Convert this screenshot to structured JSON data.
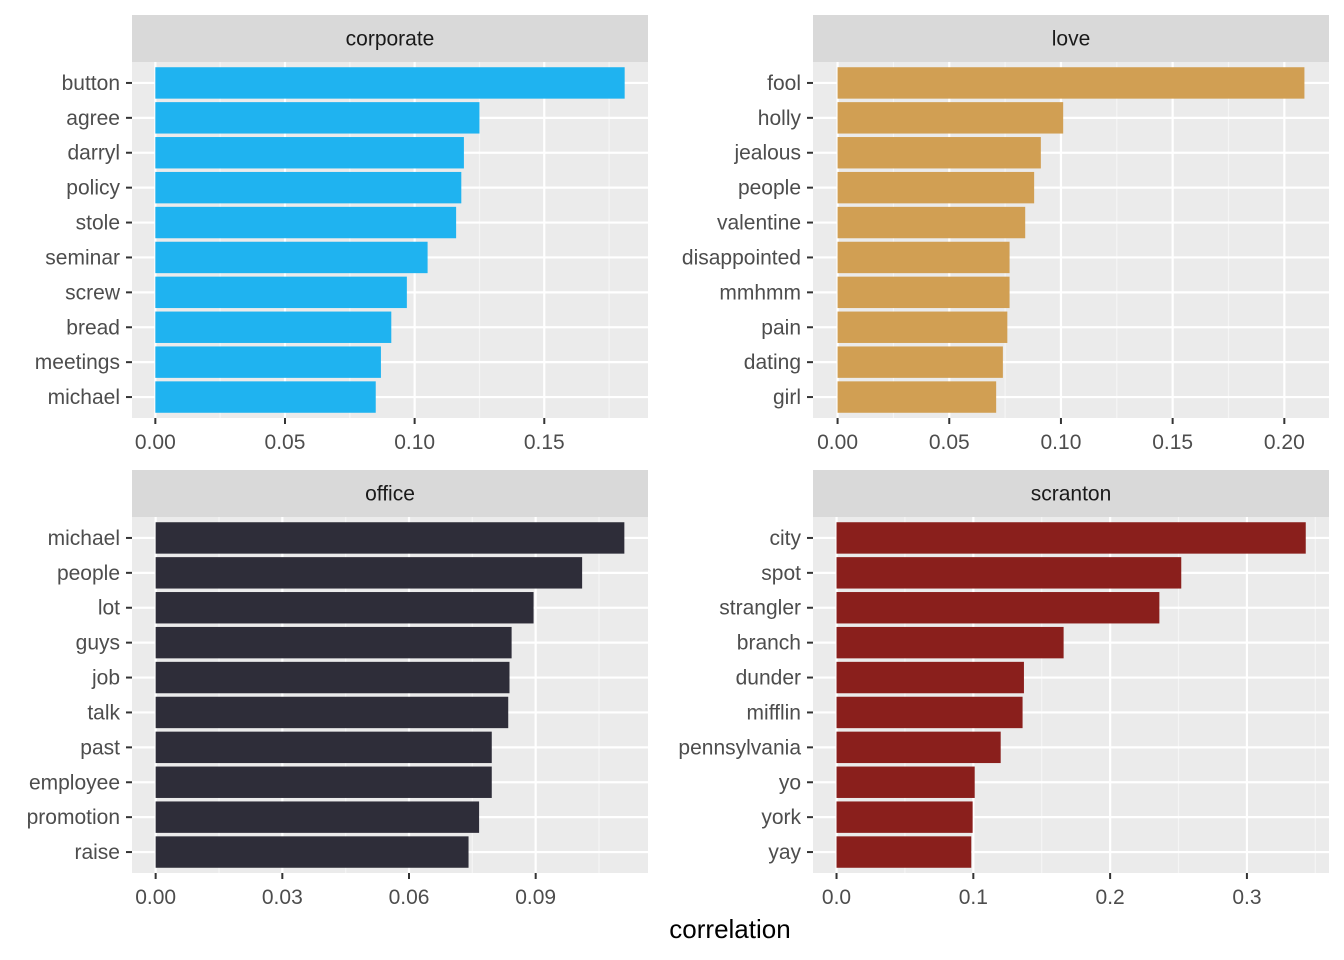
{
  "xlabel": "correlation",
  "chart_data": [
    {
      "type": "bar",
      "orientation": "horizontal",
      "facet_title": "corporate",
      "color": "#1FB3F0",
      "categories": [
        "button",
        "agree",
        "darryl",
        "policy",
        "stole",
        "seminar",
        "screw",
        "bread",
        "meetings",
        "michael"
      ],
      "values": [
        0.181,
        0.125,
        0.119,
        0.118,
        0.116,
        0.105,
        0.097,
        0.091,
        0.087,
        0.085
      ],
      "xlim": [
        -0.009,
        0.19
      ],
      "ticks": [
        0,
        0.05,
        0.1,
        0.15
      ],
      "tick_labels": [
        "0.00",
        "0.05",
        "0.10",
        "0.15"
      ]
    },
    {
      "type": "bar",
      "orientation": "horizontal",
      "facet_title": "love",
      "color": "#D19F53",
      "categories": [
        "fool",
        "holly",
        "jealous",
        "people",
        "valentine",
        "disappointed",
        "mmhmm",
        "pain",
        "dating",
        "girl"
      ],
      "values": [
        0.209,
        0.101,
        0.091,
        0.088,
        0.084,
        0.077,
        0.077,
        0.076,
        0.074,
        0.071
      ],
      "xlim": [
        -0.011,
        0.22
      ],
      "ticks": [
        0,
        0.05,
        0.1,
        0.15,
        0.2
      ],
      "tick_labels": [
        "0.00",
        "0.05",
        "0.10",
        "0.15",
        "0.20"
      ]
    },
    {
      "type": "bar",
      "orientation": "horizontal",
      "facet_title": "office",
      "color": "#2E2D39",
      "categories": [
        "michael",
        "people",
        "lot",
        "guys",
        "job",
        "talk",
        "past",
        "employee",
        "promotion",
        "raise"
      ],
      "values": [
        0.111,
        0.101,
        0.0895,
        0.0843,
        0.0838,
        0.0835,
        0.0796,
        0.0796,
        0.0766,
        0.0741
      ],
      "xlim": [
        -0.0056,
        0.1166
      ],
      "ticks": [
        0,
        0.03,
        0.06,
        0.09
      ],
      "tick_labels": [
        "0.00",
        "0.03",
        "0.06",
        "0.09"
      ]
    },
    {
      "type": "bar",
      "orientation": "horizontal",
      "facet_title": "scranton",
      "color": "#8A1F1C",
      "categories": [
        "city",
        "spot",
        "strangler",
        "branch",
        "dunder",
        "mifflin",
        "pennsylvania",
        "yo",
        "york",
        "yay"
      ],
      "values": [
        0.343,
        0.252,
        0.236,
        0.166,
        0.137,
        0.136,
        0.12,
        0.101,
        0.0995,
        0.0985
      ],
      "xlim": [
        -0.0172,
        0.36
      ],
      "ticks": [
        0,
        0.1,
        0.2,
        0.3
      ],
      "tick_labels": [
        "0.0",
        "0.1",
        "0.2",
        "0.3"
      ]
    }
  ]
}
